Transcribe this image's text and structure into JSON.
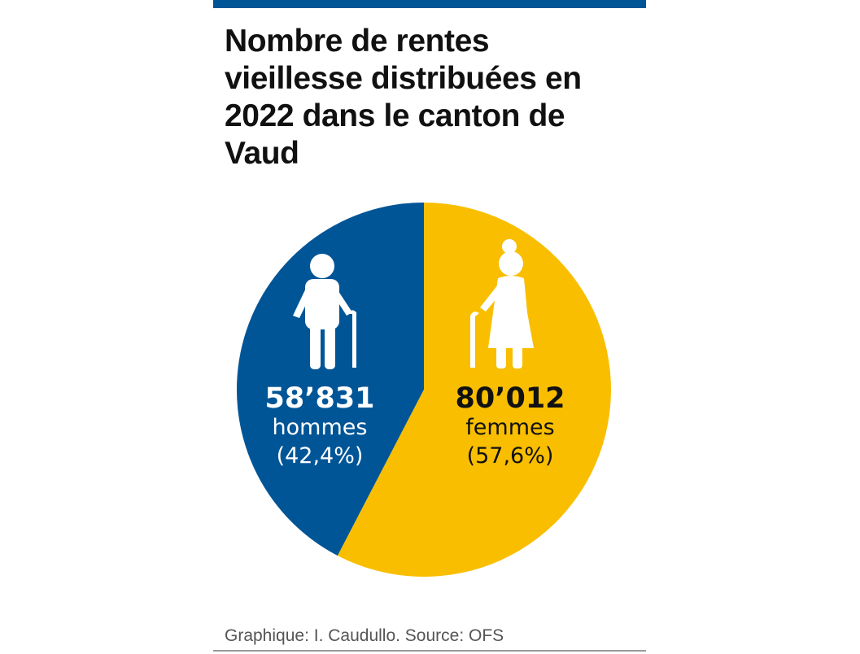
{
  "chart_data": {
    "type": "pie",
    "title": "Nombre de rentes vieillesse distribuées en 2022 dans le canton de Vaud",
    "slices": [
      {
        "label": "hommes",
        "value": 58831,
        "value_text": "58’831",
        "percent_text": "(42,4%)",
        "percent": 42.4,
        "color": "#005597",
        "text_color": "#ffffff",
        "icon": "elderly-man-cane-icon"
      },
      {
        "label": "femmes",
        "value": 80012,
        "value_text": "80’012",
        "percent_text": "(57,6%)",
        "percent": 57.6,
        "color": "#f9be00",
        "text_color": "#111111",
        "icon": "elderly-woman-cane-icon"
      }
    ],
    "start_angle": "12 o'clock",
    "direction": "counterclockwise for hommes, clockwise for femmes"
  },
  "footer": {
    "credit": "Graphique: I. Caudullo. Source: OFS"
  },
  "colors": {
    "accent": "#005597",
    "highlight": "#f9be00"
  }
}
